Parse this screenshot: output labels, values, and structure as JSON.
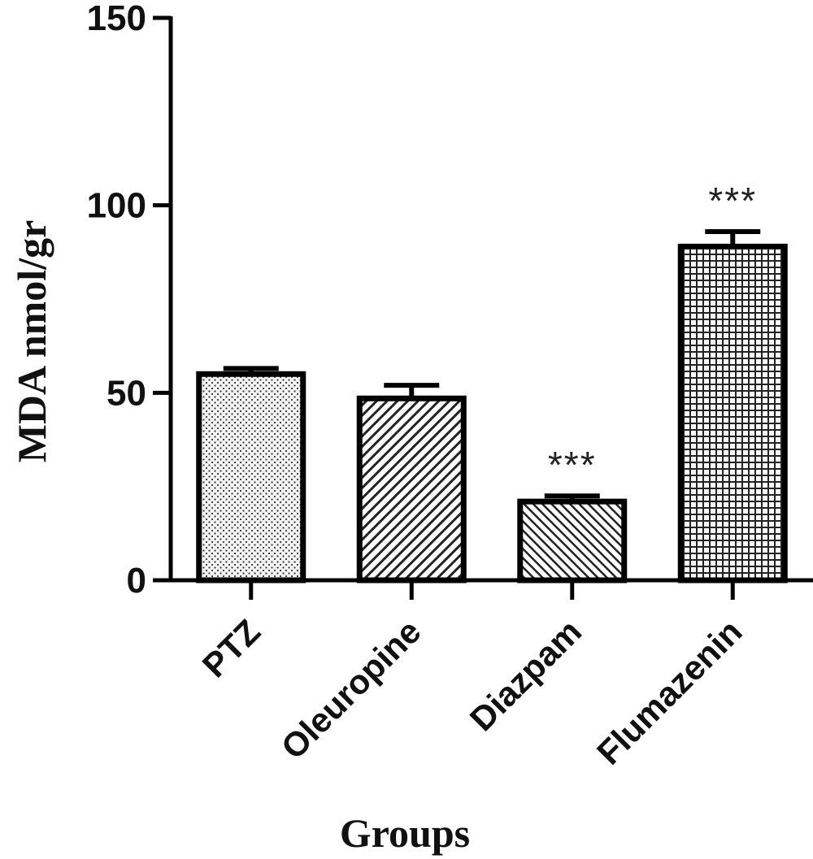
{
  "chart_data": {
    "type": "bar",
    "categories": [
      "PTZ",
      "Oleuropine",
      "Diazpam",
      "Flumazenin"
    ],
    "values": [
      55,
      48.5,
      21,
      89
    ],
    "errors": [
      1.5,
      3.5,
      1.5,
      4
    ],
    "annotations": [
      "",
      "",
      "***",
      "***"
    ],
    "patterns": [
      "dots",
      "diag-right",
      "diag-left",
      "grid"
    ],
    "xlabel": "Groups",
    "ylabel": "MDA nmol/gr",
    "ylim": [
      0,
      150
    ],
    "yticks": [
      0,
      50,
      100,
      150
    ],
    "grid": false,
    "bar_color": "#ffffff",
    "stroke_color": "#000000"
  }
}
